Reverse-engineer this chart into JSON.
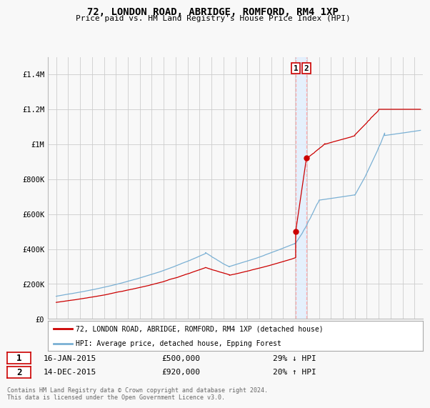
{
  "title": "72, LONDON ROAD, ABRIDGE, ROMFORD, RM4 1XP",
  "subtitle": "Price paid vs. HM Land Registry's House Price Index (HPI)",
  "legend_line1": "72, LONDON ROAD, ABRIDGE, ROMFORD, RM4 1XP (detached house)",
  "legend_line2": "HPI: Average price, detached house, Epping Forest",
  "transaction1_date": "16-JAN-2015",
  "transaction1_price": "£500,000",
  "transaction1_hpi": "29% ↓ HPI",
  "transaction2_date": "14-DEC-2015",
  "transaction2_price": "£920,000",
  "transaction2_hpi": "20% ↑ HPI",
  "footnote": "Contains HM Land Registry data © Crown copyright and database right 2024.\nThis data is licensed under the Open Government Licence v3.0.",
  "ylim": [
    0,
    1500000
  ],
  "yticks": [
    0,
    200000,
    400000,
    600000,
    800000,
    1000000,
    1200000,
    1400000
  ],
  "ytick_labels": [
    "£0",
    "£200K",
    "£400K",
    "£600K",
    "£800K",
    "£1M",
    "£1.2M",
    "£1.4M"
  ],
  "transaction1_x": 2015.05,
  "transaction1_y": 500000,
  "transaction2_x": 2015.95,
  "transaction2_y": 920000,
  "red_line_color": "#cc0000",
  "blue_line_color": "#7ab0d4",
  "vline_color": "#ffaaaa",
  "shade_color": "#ddeeff",
  "background_color": "#f8f8f8",
  "grid_color": "#cccccc",
  "xlim_left": 1994.3,
  "xlim_right": 2025.7
}
